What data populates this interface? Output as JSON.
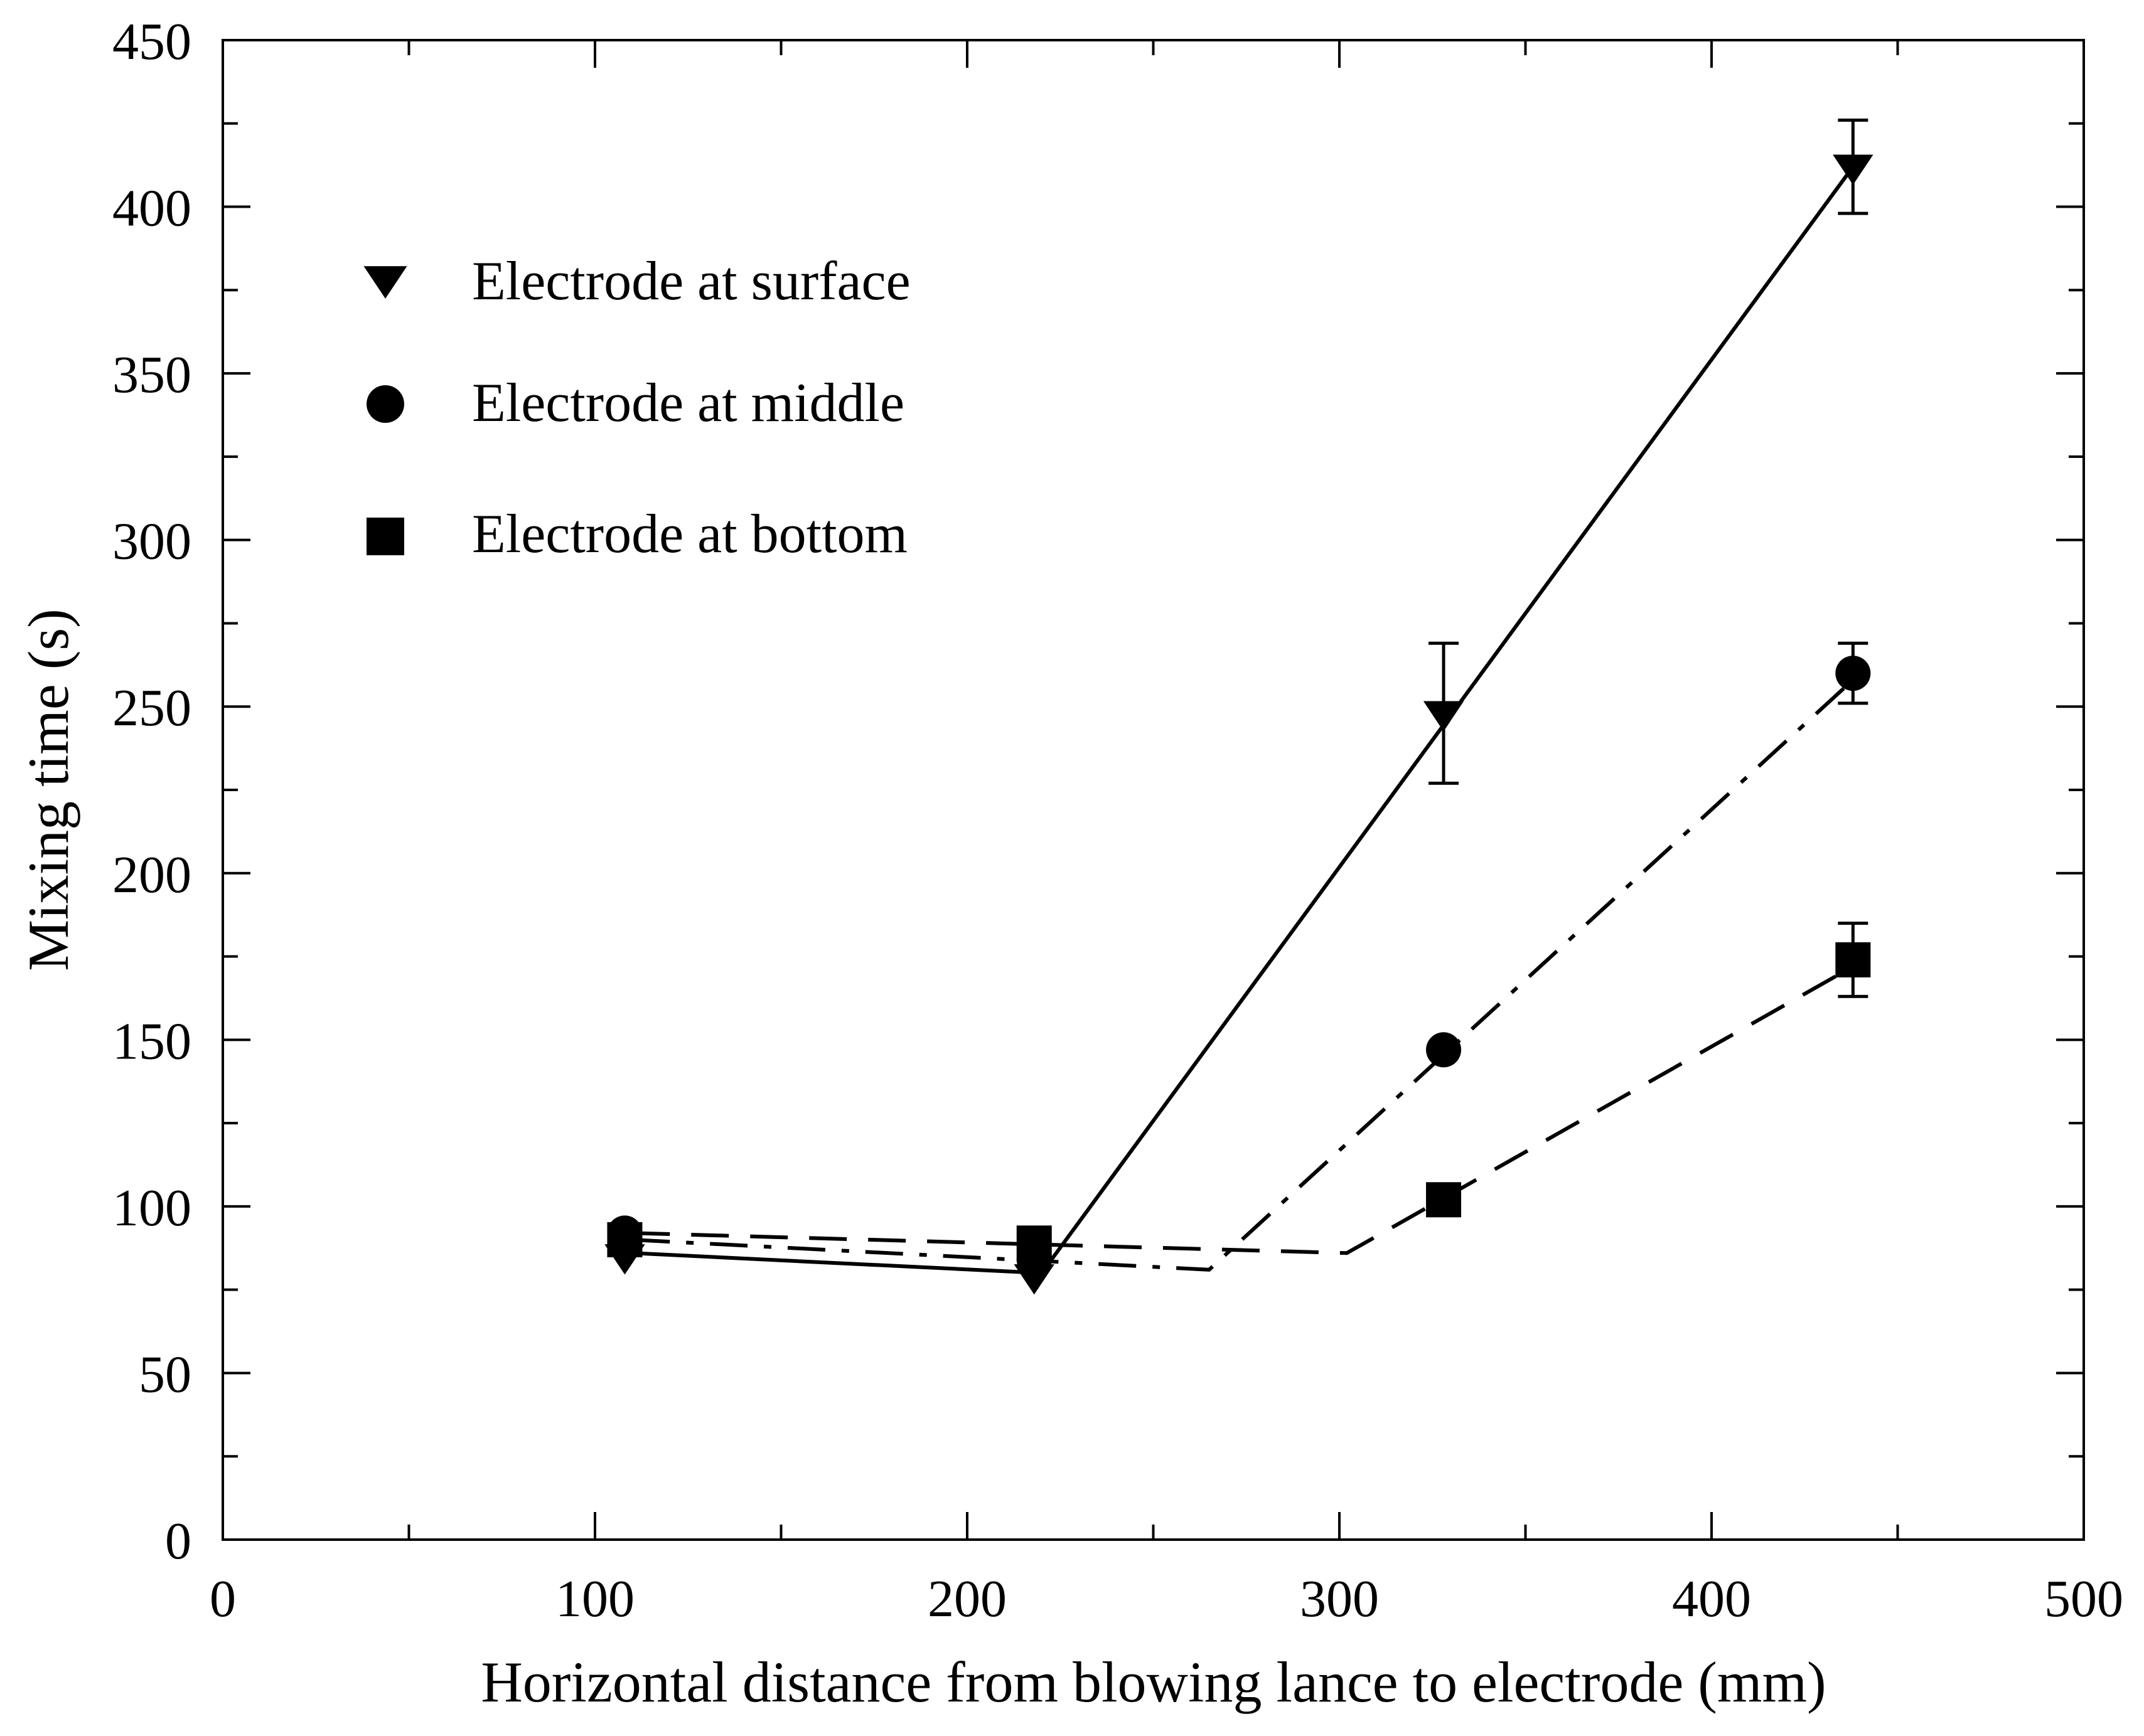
{
  "chart_data": {
    "type": "line",
    "title": "",
    "xlabel": "Horizontal distance from blowing lance to electrode (mm)",
    "ylabel": "Mixing time (s)",
    "xlim": [
      0,
      500
    ],
    "ylim": [
      0,
      450
    ],
    "x_ticks": [
      0,
      100,
      200,
      300,
      400,
      500
    ],
    "y_ticks": [
      0,
      50,
      100,
      150,
      200,
      250,
      300,
      350,
      400,
      450
    ],
    "x_tick_labels": [
      "0",
      "100",
      "200",
      "300",
      "400",
      "500"
    ],
    "y_tick_labels": [
      "0",
      "50",
      "100",
      "150",
      "200",
      "250",
      "300",
      "350",
      "400",
      "450"
    ],
    "grid": false,
    "legend_position": "upper-left",
    "series": [
      {
        "name": "Electrode at surface",
        "marker": "down-triangle",
        "line_style": "solid",
        "points": [
          {
            "x": 108,
            "y": 85,
            "err": null
          },
          {
            "x": 218,
            "y": 79,
            "err": null
          },
          {
            "x": 328,
            "y": 248,
            "err": 21
          },
          {
            "x": 438,
            "y": 412,
            "err": 14
          }
        ],
        "fit_line": [
          [
            110,
            86
          ],
          [
            220,
            80
          ],
          [
            438,
            412
          ]
        ]
      },
      {
        "name": "Electrode at middle",
        "marker": "circle",
        "line_style": "dash-dot",
        "points": [
          {
            "x": 108,
            "y": 92,
            "err": null
          },
          {
            "x": 218,
            "y": 84,
            "err": null
          },
          {
            "x": 328,
            "y": 147,
            "err": null
          },
          {
            "x": 438,
            "y": 260,
            "err": 9
          }
        ],
        "fit_line": [
          [
            110,
            90
          ],
          [
            265,
            81
          ],
          [
            438,
            258
          ]
        ]
      },
      {
        "name": "Electrode at bottom",
        "marker": "square",
        "line_style": "dashed",
        "points": [
          {
            "x": 108,
            "y": 90,
            "err": null
          },
          {
            "x": 218,
            "y": 89,
            "err": null
          },
          {
            "x": 328,
            "y": 102,
            "err": null
          },
          {
            "x": 438,
            "y": 174,
            "err": 11
          }
        ],
        "fit_line": [
          [
            110,
            92
          ],
          [
            302,
            86
          ],
          [
            438,
            172
          ]
        ]
      }
    ]
  }
}
